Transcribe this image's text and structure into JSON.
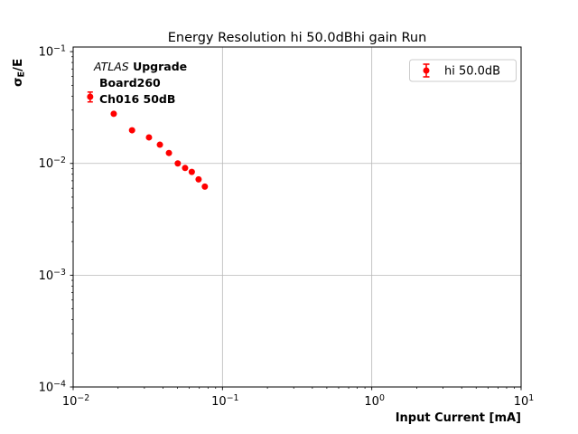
{
  "chart_data": {
    "type": "scatter",
    "title": "Energy Resolution hi 50.0dBhi gain Run",
    "xlabel": "Input Current [mA]",
    "ylabel": "σE/E",
    "ylabel_parts": {
      "sigma": "σ",
      "sub": "E",
      "rest": "/E"
    },
    "xscale": "log",
    "yscale": "log",
    "xlim": [
      0.01,
      10
    ],
    "ylim": [
      0.0001,
      0.11
    ],
    "x_tick_exponents": [
      -2,
      -1,
      0,
      1
    ],
    "y_tick_exponents": [
      -1,
      -2,
      -3,
      -4
    ],
    "x_grid_exponents": [
      -1,
      0
    ],
    "y_grid_exponents": [
      -2,
      -3
    ],
    "grid": true,
    "legend": {
      "label": "hi 50.0dB",
      "position": "upper-right"
    },
    "annotation": {
      "line1_italic": "ATLAS",
      "line1_bold": " Upgrade",
      "line2": "Board260",
      "line3": "Ch016 50dB"
    },
    "series": [
      {
        "name": "hi 50.0dB",
        "marker": "circle-errorbar",
        "color": "#ff0000",
        "x": [
          0.013,
          0.0187,
          0.0248,
          0.0322,
          0.0381,
          0.0438,
          0.0502,
          0.0562,
          0.0623,
          0.0692,
          0.0762
        ],
        "y": [
          0.0395,
          0.0278,
          0.0198,
          0.0171,
          0.0147,
          0.0124,
          0.01,
          0.0091,
          0.0084,
          0.0072,
          0.0062
        ],
        "yerr": [
          0.004,
          0,
          0,
          0,
          0,
          0,
          0,
          0,
          0,
          0,
          0
        ]
      }
    ],
    "colors": {
      "marker": "#ff0000",
      "grid": "#b8b8b8",
      "axis": "#000000",
      "text": "#000000",
      "legend_edge": "#cccccc",
      "background": "#ffffff"
    }
  }
}
